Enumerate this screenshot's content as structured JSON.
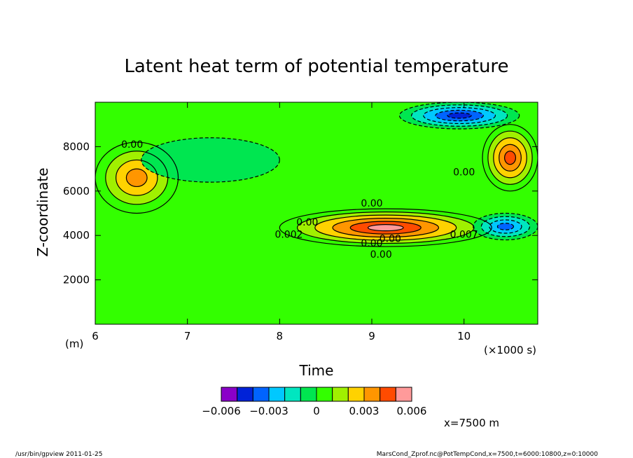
{
  "chart_data": {
    "type": "heatmap",
    "title": "Latent heat term of potential temperature",
    "xlabel": "Time",
    "ylabel": "Z-coordinate",
    "x_unit_label": "(×1000 s)",
    "y_unit_label": "(m)",
    "xlim": [
      6,
      10.8
    ],
    "ylim": [
      0,
      10000
    ],
    "x_ticks": [
      6,
      7,
      8,
      9,
      10
    ],
    "y_ticks": [
      2000,
      4000,
      6000,
      8000
    ],
    "x_tick_labels": [
      "6",
      "7",
      "8",
      "9",
      "10"
    ],
    "y_tick_labels": [
      "2000",
      "4000",
      "6000",
      "8000"
    ],
    "contour_labels": [
      {
        "text": "0.00",
        "x": 6.4,
        "y": 7950
      },
      {
        "text": "0.00",
        "x": 10.0,
        "y": 6700
      },
      {
        "text": "0.00",
        "x": 9.0,
        "y": 5300
      },
      {
        "text": "0.00",
        "x": 8.3,
        "y": 4450
      },
      {
        "text": "0.002",
        "x": 8.1,
        "y": 3900
      },
      {
        "text": "0.00",
        "x": 9.2,
        "y": 3700
      },
      {
        "text": "0.00",
        "x": 9.0,
        "y": 3500
      },
      {
        "text": "0.00",
        "x": 9.1,
        "y": 3000
      },
      {
        "text": "0.007",
        "x": 10.0,
        "y": 3900
      }
    ],
    "colorbar": {
      "levels": [
        -0.006,
        -0.005,
        -0.004,
        -0.003,
        -0.002,
        -0.001,
        0,
        0.001,
        0.002,
        0.003,
        0.004,
        0.005,
        0.006
      ],
      "colors": [
        "#8a00c8",
        "#0022d8",
        "#0064ff",
        "#00c8ff",
        "#00e6c0",
        "#00e650",
        "#33ff00",
        "#a0f000",
        "#ffd200",
        "#ff9600",
        "#ff4b00",
        "#ff9a9a"
      ],
      "tick_labels": [
        {
          "text": "−0.006",
          "value": -0.006
        },
        {
          "text": "−0.003",
          "value": -0.003
        },
        {
          "text": "0",
          "value": 0
        },
        {
          "text": "0.003",
          "value": 0.003
        },
        {
          "text": "0.006",
          "value": 0.006
        }
      ]
    },
    "regions": [
      {
        "name": "upper-left warm patch",
        "x_range": [
          6.0,
          6.9
        ],
        "y_range": [
          5000,
          8200
        ],
        "peak_value": 0.004
      },
      {
        "name": "mid-level layer",
        "x_range": [
          8.0,
          10.3
        ],
        "y_range": [
          3500,
          5200
        ],
        "peak_value": 0.006
      },
      {
        "name": "top negative patch",
        "x_range": [
          9.3,
          10.6
        ],
        "y_range": [
          8800,
          10000
        ],
        "min_value": -0.005
      },
      {
        "name": "right negative patch",
        "x_range": [
          10.1,
          10.8
        ],
        "y_range": [
          3800,
          5000
        ],
        "min_value": -0.004
      },
      {
        "name": "upper-right warm patch",
        "x_range": [
          10.2,
          10.8
        ],
        "y_range": [
          6000,
          9000
        ],
        "peak_value": 0.005
      },
      {
        "name": "upper-left cool band",
        "x_range": [
          6.5,
          8.0
        ],
        "y_range": [
          6400,
          8400
        ],
        "min_value": -0.001
      }
    ]
  },
  "annotations": {
    "position_label": "x=7500 m"
  },
  "footer": {
    "left": "/usr/bin/gpview   2011-01-25",
    "right": "MarsCond_Zprof.nc@PotTempCond,x=7500,t=6000:10800,z=0:10000"
  }
}
